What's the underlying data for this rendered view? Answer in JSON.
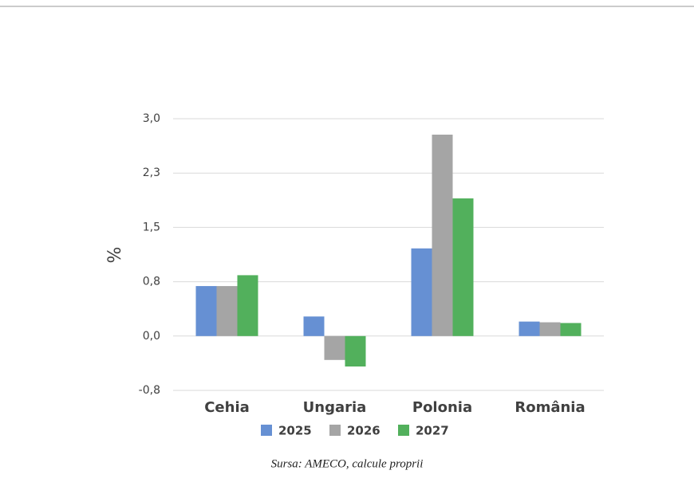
{
  "chart_data": {
    "type": "bar",
    "y_label": "%",
    "source": "Sursa: AMECO, calcule proprii",
    "categories": [
      "Cehia",
      "Ungaria",
      "Polonia",
      "România"
    ],
    "series": [
      {
        "name": "2025",
        "color": "#6690d3",
        "values": [
          0.69,
          0.27,
          1.21,
          0.2
        ]
      },
      {
        "name": "2026",
        "color": "#a5a5a5",
        "values": [
          0.69,
          -0.33,
          2.78,
          0.19
        ]
      },
      {
        "name": "2027",
        "color": "#52b05c",
        "values": [
          0.84,
          -0.42,
          1.9,
          0.18
        ]
      }
    ],
    "ylim": [
      -0.75,
      3.0
    ],
    "yticks": [
      {
        "value": -0.75,
        "label": "-0,8"
      },
      {
        "value": 0,
        "label": "0,0"
      },
      {
        "value": 0.75,
        "label": "0,8"
      },
      {
        "value": 1.5,
        "label": "1,5"
      },
      {
        "value": 2.25,
        "label": "2,3"
      },
      {
        "value": 3.0,
        "label": "3,0"
      }
    ],
    "grid": true
  }
}
